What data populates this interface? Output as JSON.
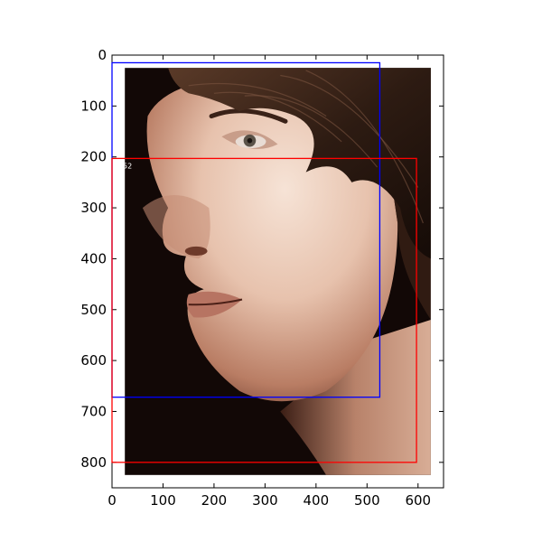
{
  "chart_data": {
    "type": "image-with-bounding-boxes",
    "xlim": [
      0,
      650
    ],
    "ylim": [
      0,
      850
    ],
    "y_axis_inverted": true,
    "x_ticks": [
      0,
      100,
      200,
      300,
      400,
      500,
      600
    ],
    "y_ticks": [
      0,
      100,
      200,
      300,
      400,
      500,
      600,
      700,
      800
    ],
    "grid": false,
    "image": {
      "subject": "close-up profile portrait of a young man's face",
      "extent": {
        "x": [
          25,
          625
        ],
        "y": [
          25,
          825
        ]
      },
      "colors": {
        "background": "#120806",
        "skin_light": "#f1d8c8",
        "skin_mid": "#d9ab94",
        "skin_shadow": "#7a4635",
        "hair": "#2a1a12"
      }
    },
    "boxes": [
      {
        "name": "blue-box",
        "color": "#0000ff",
        "x": [
          0,
          525
        ],
        "y": [
          15,
          672
        ]
      },
      {
        "name": "red-box",
        "color": "#ff0000",
        "x": [
          0,
          597
        ],
        "y": [
          203,
          800
        ],
        "label": "52"
      }
    ]
  }
}
